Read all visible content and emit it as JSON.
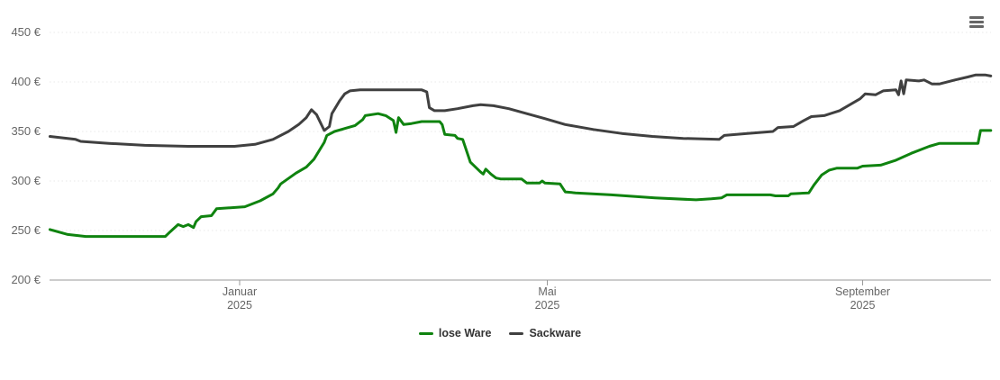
{
  "chart_data": {
    "type": "line",
    "title": "",
    "grid": "horizontal-dotted",
    "legend_position": "bottom-center",
    "y_axis": {
      "min": 200,
      "max": 450,
      "tick_interval": 50,
      "unit": "€",
      "labels": [
        {
          "value": 200,
          "label": "200 €"
        },
        {
          "value": 250,
          "label": "250 €"
        },
        {
          "value": 300,
          "label": "300 €"
        },
        {
          "value": 350,
          "label": "350 €"
        },
        {
          "value": 400,
          "label": "400 €"
        },
        {
          "value": 450,
          "label": "450 €"
        }
      ]
    },
    "x_axis": {
      "range": [
        "2024-10-19",
        "2025-10-21"
      ],
      "ticks": [
        {
          "date": "2025-01-01",
          "label_month": "Januar",
          "label_year": "2025"
        },
        {
          "date": "2025-05-01",
          "label_month": "Mai",
          "label_year": "2025"
        },
        {
          "date": "2025-09-01",
          "label_month": "September",
          "label_year": "2025"
        }
      ]
    },
    "series": [
      {
        "name": "lose Ware",
        "color": "#0f830f",
        "points": [
          [
            "2024-10-19",
            251
          ],
          [
            "2024-10-26",
            246
          ],
          [
            "2024-11-02",
            244
          ],
          [
            "2024-12-03",
            244
          ],
          [
            "2024-12-05",
            249
          ],
          [
            "2024-12-08",
            256
          ],
          [
            "2024-12-10",
            254
          ],
          [
            "2024-12-12",
            256
          ],
          [
            "2024-12-14",
            253
          ],
          [
            "2024-12-15",
            259
          ],
          [
            "2024-12-17",
            264
          ],
          [
            "2024-12-21",
            265
          ],
          [
            "2024-12-23",
            272
          ],
          [
            "2025-01-03",
            274
          ],
          [
            "2025-01-09",
            280
          ],
          [
            "2025-01-14",
            287
          ],
          [
            "2025-01-16",
            293
          ],
          [
            "2025-01-17",
            297
          ],
          [
            "2025-01-23",
            308
          ],
          [
            "2025-01-27",
            314
          ],
          [
            "2025-01-30",
            322
          ],
          [
            "2025-02-03",
            339
          ],
          [
            "2025-02-04",
            346
          ],
          [
            "2025-02-07",
            350
          ],
          [
            "2025-02-11",
            353
          ],
          [
            "2025-02-15",
            356
          ],
          [
            "2025-02-18",
            362
          ],
          [
            "2025-02-19",
            366
          ],
          [
            "2025-02-24",
            368
          ],
          [
            "2025-02-27",
            366
          ],
          [
            "2025-03-02",
            361
          ],
          [
            "2025-03-03",
            349
          ],
          [
            "2025-03-04",
            364
          ],
          [
            "2025-03-06",
            357
          ],
          [
            "2025-03-09",
            358
          ],
          [
            "2025-03-13",
            360
          ],
          [
            "2025-03-20",
            360
          ],
          [
            "2025-03-21",
            357
          ],
          [
            "2025-03-22",
            347
          ],
          [
            "2025-03-26",
            346
          ],
          [
            "2025-03-27",
            343
          ],
          [
            "2025-03-29",
            342
          ],
          [
            "2025-04-01",
            319
          ],
          [
            "2025-04-03",
            314
          ],
          [
            "2025-04-05",
            309
          ],
          [
            "2025-04-06",
            307
          ],
          [
            "2025-04-07",
            312
          ],
          [
            "2025-04-09",
            307
          ],
          [
            "2025-04-11",
            303
          ],
          [
            "2025-04-13",
            302
          ],
          [
            "2025-04-21",
            302
          ],
          [
            "2025-04-23",
            298
          ],
          [
            "2025-04-28",
            298
          ],
          [
            "2025-04-29",
            300
          ],
          [
            "2025-04-30",
            298
          ],
          [
            "2025-05-06",
            297
          ],
          [
            "2025-05-08",
            289
          ],
          [
            "2025-05-12",
            288
          ],
          [
            "2025-05-26",
            286
          ],
          [
            "2025-06-12",
            283
          ],
          [
            "2025-06-28",
            281
          ],
          [
            "2025-07-04",
            282
          ],
          [
            "2025-07-08",
            283
          ],
          [
            "2025-07-10",
            286
          ],
          [
            "2025-07-27",
            286
          ],
          [
            "2025-07-29",
            285
          ],
          [
            "2025-08-03",
            285
          ],
          [
            "2025-08-04",
            287
          ],
          [
            "2025-08-11",
            288
          ],
          [
            "2025-08-13",
            296
          ],
          [
            "2025-08-16",
            306
          ],
          [
            "2025-08-19",
            311
          ],
          [
            "2025-08-22",
            313
          ],
          [
            "2025-08-30",
            313
          ],
          [
            "2025-09-01",
            315
          ],
          [
            "2025-09-08",
            316
          ],
          [
            "2025-09-14",
            321
          ],
          [
            "2025-09-20",
            328
          ],
          [
            "2025-09-27",
            335
          ],
          [
            "2025-10-01",
            338
          ],
          [
            "2025-10-16",
            338
          ],
          [
            "2025-10-17",
            351
          ],
          [
            "2025-10-21",
            351
          ]
        ]
      },
      {
        "name": "Sackware",
        "color": "#404040",
        "points": [
          [
            "2024-10-19",
            345
          ],
          [
            "2024-10-29",
            342
          ],
          [
            "2024-10-31",
            340
          ],
          [
            "2024-11-11",
            338
          ],
          [
            "2024-11-25",
            336
          ],
          [
            "2024-12-12",
            335
          ],
          [
            "2024-12-30",
            335
          ],
          [
            "2025-01-07",
            337
          ],
          [
            "2025-01-14",
            342
          ],
          [
            "2025-01-20",
            350
          ],
          [
            "2025-01-24",
            357
          ],
          [
            "2025-01-27",
            364
          ],
          [
            "2025-01-29",
            372
          ],
          [
            "2025-01-31",
            367
          ],
          [
            "2025-02-03",
            351
          ],
          [
            "2025-02-05",
            355
          ],
          [
            "2025-02-06",
            368
          ],
          [
            "2025-02-09",
            381
          ],
          [
            "2025-02-11",
            388
          ],
          [
            "2025-02-13",
            391
          ],
          [
            "2025-02-17",
            392
          ],
          [
            "2025-03-13",
            392
          ],
          [
            "2025-03-15",
            390
          ],
          [
            "2025-03-16",
            374
          ],
          [
            "2025-03-18",
            371
          ],
          [
            "2025-03-22",
            371
          ],
          [
            "2025-03-27",
            373
          ],
          [
            "2025-04-02",
            376
          ],
          [
            "2025-04-05",
            377
          ],
          [
            "2025-04-10",
            376
          ],
          [
            "2025-04-16",
            373
          ],
          [
            "2025-04-23",
            368
          ],
          [
            "2025-04-30",
            363
          ],
          [
            "2025-05-08",
            357
          ],
          [
            "2025-05-19",
            352
          ],
          [
            "2025-05-30",
            348
          ],
          [
            "2025-06-11",
            345
          ],
          [
            "2025-06-23",
            343
          ],
          [
            "2025-07-07",
            342
          ],
          [
            "2025-07-09",
            346
          ],
          [
            "2025-07-18",
            348
          ],
          [
            "2025-07-28",
            350
          ],
          [
            "2025-07-30",
            354
          ],
          [
            "2025-08-05",
            355
          ],
          [
            "2025-08-09",
            361
          ],
          [
            "2025-08-12",
            365
          ],
          [
            "2025-08-17",
            366
          ],
          [
            "2025-08-23",
            371
          ],
          [
            "2025-08-27",
            377
          ],
          [
            "2025-08-31",
            383
          ],
          [
            "2025-09-02",
            388
          ],
          [
            "2025-09-06",
            387
          ],
          [
            "2025-09-09",
            391
          ],
          [
            "2025-09-14",
            392
          ],
          [
            "2025-09-15",
            387
          ],
          [
            "2025-09-16",
            401
          ],
          [
            "2025-09-17",
            388
          ],
          [
            "2025-09-18",
            402
          ],
          [
            "2025-09-23",
            401
          ],
          [
            "2025-09-25",
            402
          ],
          [
            "2025-09-28",
            398
          ],
          [
            "2025-10-01",
            398
          ],
          [
            "2025-10-07",
            402
          ],
          [
            "2025-10-12",
            405
          ],
          [
            "2025-10-15",
            407
          ],
          [
            "2025-10-19",
            407
          ],
          [
            "2025-10-21",
            406
          ]
        ]
      }
    ]
  },
  "colors": {
    "grid_line": "#e8e8e8",
    "axis_line": "#999999",
    "axis_label": "#666666",
    "legend_text": "#333333",
    "menu_icon": "#666666",
    "background": "#ffffff"
  },
  "icons": {
    "context_menu": "hamburger-menu-icon"
  }
}
